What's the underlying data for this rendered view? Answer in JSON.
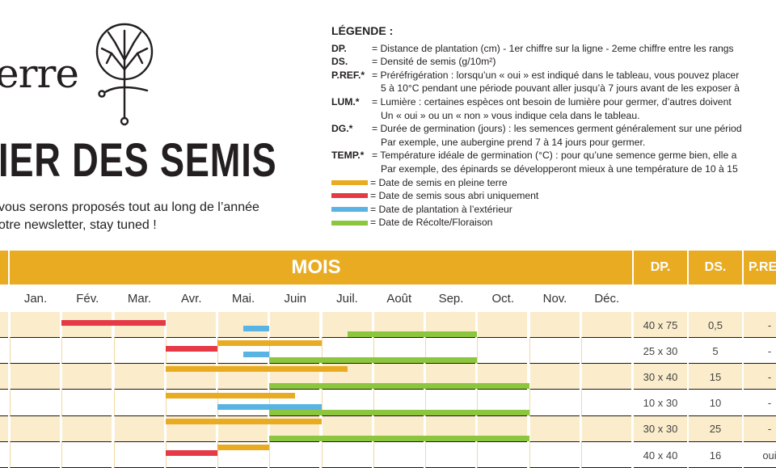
{
  "logo": {
    "word": "erre"
  },
  "title": "IER DES SEMIS",
  "subtitle_lines": [
    "vous serons proposés tout au long de l’année",
    "otre newsletter, stay tuned !"
  ],
  "legend": {
    "title": "LÉGENDE :",
    "items": [
      {
        "code": "DP.",
        "lines": [
          "= Distance de plantation (cm) - 1er chiffre sur la ligne - 2eme chiffre entre les rangs"
        ]
      },
      {
        "code": "DS.",
        "lines": [
          "= Densité de semis (g/10m²)"
        ]
      },
      {
        "code": "P.REF.*",
        "lines": [
          "= Préréfrigération : lorsqu’un « oui » est indiqué dans le tableau, vous pouvez placer",
          "5 à 10°C pendant une période pouvant aller jusqu’à 7 jours avant de les exposer à"
        ]
      },
      {
        "code": "LUM.*",
        "lines": [
          "= Lumière : certaines espèces ont besoin de lumière pour germer, d’autres doivent",
          "Un « oui » ou un « non » vous indique cela dans le tableau."
        ]
      },
      {
        "code": "DG.*",
        "lines": [
          "= Durée de germination (jours) : les semences germent généralement sur une périod",
          "Par exemple, une aubergine prend 7 à 14 jours pour germer."
        ]
      },
      {
        "code": "TEMP.*",
        "lines": [
          "= Température idéale de germination (°C) : pour qu’une semence germe bien, elle a",
          "Par exemple, des épinards se développeront mieux à une température de 10 à 15"
        ]
      }
    ],
    "colors": [
      {
        "color": "#e9ab22",
        "label": "= Date de semis en pleine terre"
      },
      {
        "color": "#e63946",
        "label": "= Date de semis sous abri uniquement"
      },
      {
        "color": "#5ab4e3",
        "label": "= Date de plantation à l’extérieur"
      },
      {
        "color": "#8cc63f",
        "label": "= Date de Récolte/Floraison"
      }
    ]
  },
  "table": {
    "header": {
      "mois": "MOIS",
      "dp": "DP.",
      "ds": "DS.",
      "pref": "P.RE"
    },
    "months": [
      "Jan.",
      "Fév.",
      "Mar.",
      "Avr.",
      "Mai.",
      "Juin",
      "Juil.",
      "Août",
      "Sep.",
      "Oct.",
      "Nov.",
      "Déc."
    ],
    "rows": [
      {
        "dp": "40 x 75",
        "ds": "0,5",
        "pref": "-",
        "bars": [
          {
            "kind": "red",
            "start": 1.0,
            "end": 3.0
          },
          {
            "kind": "blue",
            "start": 4.5,
            "end": 5.0
          },
          {
            "kind": "green",
            "start": 6.5,
            "end": 9.0
          }
        ]
      },
      {
        "dp": "25 x 30",
        "ds": "5",
        "pref": "-",
        "bars": [
          {
            "kind": "orange",
            "start": 4.0,
            "end": 6.0
          },
          {
            "kind": "red",
            "start": 3.0,
            "end": 4.0
          },
          {
            "kind": "blue",
            "start": 4.5,
            "end": 5.0
          },
          {
            "kind": "green",
            "start": 5.0,
            "end": 9.0
          }
        ]
      },
      {
        "dp": "30 x 40",
        "ds": "15",
        "pref": "-",
        "bars": [
          {
            "kind": "orange",
            "start": 3.0,
            "end": 6.5
          },
          {
            "kind": "green",
            "start": 5.0,
            "end": 10.0
          }
        ]
      },
      {
        "dp": "10 x 30",
        "ds": "10",
        "pref": "-",
        "bars": [
          {
            "kind": "orange",
            "start": 3.0,
            "end": 5.5
          },
          {
            "kind": "blue",
            "start": 4.0,
            "end": 6.0
          },
          {
            "kind": "green",
            "start": 5.0,
            "end": 10.0
          }
        ]
      },
      {
        "dp": "30 x 30",
        "ds": "25",
        "pref": "-",
        "bars": [
          {
            "kind": "orange",
            "start": 3.0,
            "end": 6.0
          },
          {
            "kind": "green",
            "start": 5.0,
            "end": 10.0
          }
        ]
      },
      {
        "dp": "40 x 40",
        "ds": "16",
        "pref": "oui",
        "bars": [
          {
            "kind": "orange",
            "start": 4.0,
            "end": 5.0
          },
          {
            "kind": "red",
            "start": 3.0,
            "end": 4.0
          }
        ]
      }
    ]
  },
  "colors": {
    "accent": "#e9ab22",
    "row_tint": "#fbeccb",
    "orange": "#e9ab22",
    "red": "#e63946",
    "blue": "#5ab4e3",
    "green": "#8cc63f"
  }
}
